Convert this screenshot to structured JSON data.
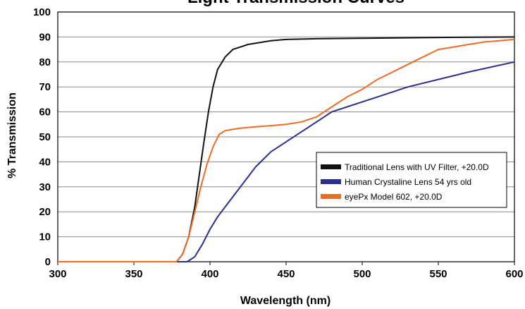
{
  "chart_data": {
    "type": "line",
    "title": "Light Transmission Curves",
    "xlabel": "Wavelength (nm)",
    "ylabel": "% Transmission",
    "xlim": [
      300,
      600
    ],
    "ylim": [
      0,
      100
    ],
    "xticks": [
      300,
      350,
      400,
      450,
      500,
      550,
      600
    ],
    "yticks": [
      0,
      10,
      20,
      30,
      40,
      50,
      60,
      70,
      80,
      90,
      100
    ],
    "grid": "horizontal",
    "legend_position": "right",
    "series": [
      {
        "name": "Traditional Lens with UV Filter, +20.0D",
        "color": "#111111",
        "x": [
          300,
          378,
          382,
          386,
          390,
          393,
          396,
          399,
          402,
          405,
          410,
          415,
          420,
          425,
          430,
          440,
          450,
          470,
          500,
          550,
          600
        ],
        "y": [
          0,
          0,
          3,
          10,
          22,
          35,
          48,
          60,
          70,
          77,
          82,
          85,
          86,
          87,
          87.5,
          88.5,
          89,
          89.3,
          89.5,
          89.8,
          90
        ]
      },
      {
        "name": "Human Crystaline Lens 54 yrs old",
        "color": "#2b2f8c",
        "x": [
          300,
          385,
          390,
          395,
          400,
          405,
          410,
          415,
          420,
          430,
          440,
          450,
          460,
          470,
          480,
          490,
          500,
          510,
          520,
          530,
          550,
          570,
          600
        ],
        "y": [
          0,
          0,
          2,
          7,
          13,
          18,
          22,
          26,
          30,
          38,
          44,
          48,
          52,
          56,
          60,
          62,
          64,
          66,
          68,
          70,
          73,
          76,
          80
        ]
      },
      {
        "name": "eyePx Model 602, +20.0D",
        "color": "#f06a24",
        "x": [
          300,
          378,
          382,
          386,
          390,
          394,
          398,
          402,
          406,
          410,
          415,
          420,
          430,
          440,
          450,
          460,
          470,
          480,
          490,
          500,
          510,
          520,
          530,
          540,
          550,
          560,
          570,
          580,
          590,
          600
        ],
        "y": [
          0,
          0,
          3,
          10,
          20,
          30,
          39,
          46,
          51,
          52.5,
          53,
          53.5,
          54,
          54.5,
          55,
          56,
          58,
          62,
          66,
          69,
          73,
          76,
          79,
          82,
          85,
          86,
          87,
          88,
          88.5,
          89
        ]
      }
    ]
  }
}
